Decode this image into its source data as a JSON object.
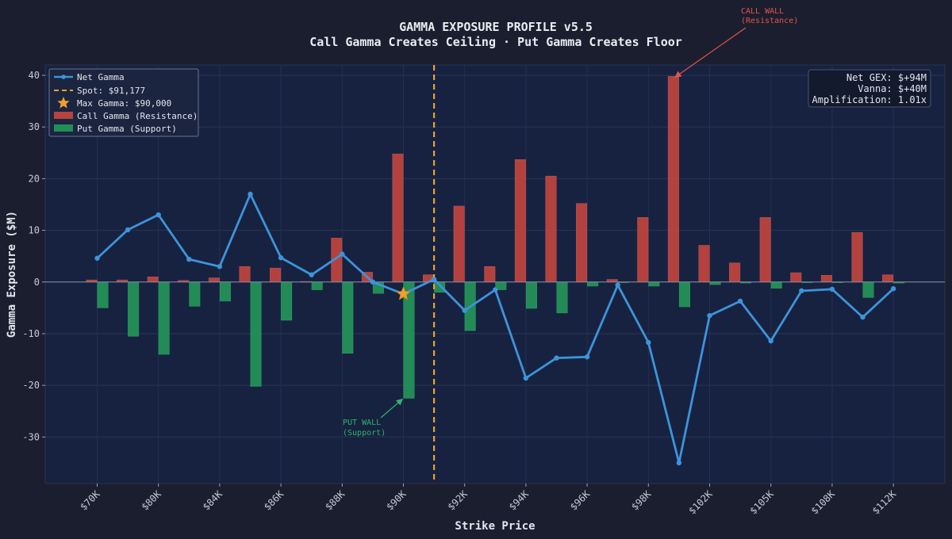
{
  "title": "GAMMA EXPOSURE PROFILE v5.5",
  "subtitle": "Call Gamma Creates Ceiling · Put Gamma Creates Floor",
  "colors": {
    "background": "#1b1e2e",
    "plot_bg": "#172240",
    "net_line": "#3d94d9",
    "call": "#c9473f",
    "put": "#249a5a",
    "spot": "#f0a030",
    "star": "#f0a030",
    "call_annotation": "#e0554a",
    "put_annotation": "#2fb56a"
  },
  "legend": {
    "net": "Net Gamma",
    "spot": "Spot: $91,177",
    "max": "Max Gamma: $90,000",
    "call": "Call Gamma (Resistance)",
    "put": "Put Gamma (Support)"
  },
  "info_box": {
    "net_gex": "Net GEX: $+94M",
    "vanna": "Vanna: $+40M",
    "amplification": "Amplification: 1.01x"
  },
  "annotations": {
    "call_wall_line1": "CALL WALL",
    "call_wall_line2": "(Resistance)",
    "put_wall_line1": "PUT WALL",
    "put_wall_line2": "(Support)"
  },
  "chart_data": {
    "type": "bar",
    "xlabel": "Strike Price",
    "ylabel": "Gamma Exposure ($M)",
    "ylim": [
      -39,
      42
    ],
    "yticks": [
      -30,
      -20,
      -10,
      0,
      10,
      20,
      30,
      40
    ],
    "x_tick_labels": [
      {
        "label": "$70K",
        "index": 0
      },
      {
        "label": "$80K",
        "index": 2
      },
      {
        "label": "$84K",
        "index": 4
      },
      {
        "label": "$86K",
        "index": 6
      },
      {
        "label": "$88K",
        "index": 8
      },
      {
        "label": "$90K",
        "index": 10
      },
      {
        "label": "$92K",
        "index": 12
      },
      {
        "label": "$94K",
        "index": 14
      },
      {
        "label": "$96K",
        "index": 16
      },
      {
        "label": "$98K",
        "index": 18
      },
      {
        "label": "$102K",
        "index": 20
      },
      {
        "label": "$105K",
        "index": 22
      },
      {
        "label": "$108K",
        "index": 24
      },
      {
        "label": "$112K",
        "index": 26
      }
    ],
    "spot_index": 11,
    "max_gamma_index": 10,
    "max_gamma_value": -2.3,
    "call_wall_index": 19,
    "put_wall_index": 10,
    "series": [
      {
        "name": "Call Gamma (Resistance)",
        "type": "bar",
        "values": [
          0.4,
          0.4,
          1.0,
          0.3,
          0.8,
          3.0,
          2.7,
          0.1,
          8.5,
          1.9,
          24.8,
          1.4,
          14.7,
          3.0,
          23.7,
          20.5,
          15.2,
          0.5,
          12.5,
          39.8,
          7.1,
          3.7,
          12.5,
          1.8,
          1.3,
          9.6,
          1.4
        ]
      },
      {
        "name": "Put Gamma (Support)",
        "type": "bar",
        "values": [
          -5.0,
          -10.5,
          -14.0,
          -4.7,
          -3.7,
          -20.2,
          -7.4,
          -1.5,
          -13.8,
          -2.2,
          -22.5,
          -2.0,
          -9.4,
          -1.5,
          -5.1,
          -6.0,
          -0.8,
          -0.1,
          -0.8,
          -4.8,
          -0.5,
          -0.2,
          -1.2,
          -0.1,
          -0.1,
          -3.0,
          -0.2
        ]
      },
      {
        "name": "Net Gamma",
        "type": "line",
        "values": [
          4.6,
          10.1,
          13.0,
          4.4,
          3.0,
          17.0,
          4.7,
          1.4,
          5.4,
          0.0,
          -2.3,
          0.5,
          -5.5,
          -1.5,
          -18.6,
          -14.7,
          -14.5,
          -0.6,
          -11.7,
          -35.0,
          -6.5,
          -3.7,
          -11.4,
          -1.7,
          -1.4,
          -6.8,
          -1.3
        ]
      }
    ]
  }
}
